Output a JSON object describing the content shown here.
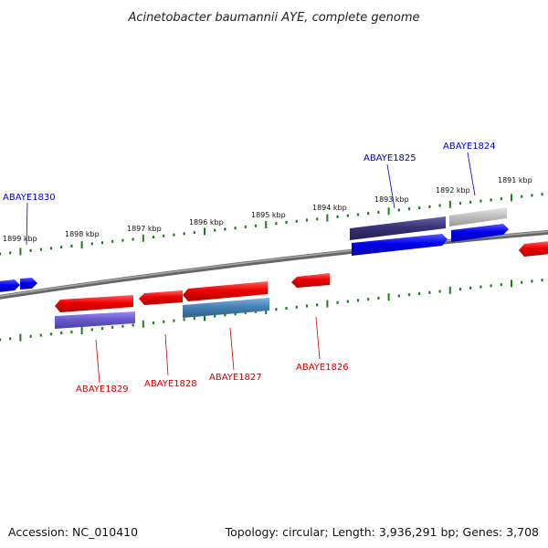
{
  "title": "Acinetobacter baumannii AYE, complete genome",
  "footer": {
    "accession": "Accession: NC_010410",
    "summary": "Topology: circular; Length: 3,936,291 bp; Genes: 3,708"
  },
  "colors": {
    "backbone": "#777777",
    "tick": "#1a7f1a",
    "forward_gene": "#0000ee",
    "reverse_gene": "#ee0000",
    "label_forward": "#0000cc",
    "label_reverse": "#cc0000",
    "dark_purple": "#3a3277",
    "light_purple": "#6a5acd",
    "steel_blue": "#4682b4",
    "gray_gene": "#c0c0c0"
  },
  "scale_labels": [
    "1899 kbp",
    "1898 kbp",
    "1897 kbp",
    "1896 kbp",
    "1895 kbp",
    "1894 kbp",
    "1893 kbp",
    "1892 kbp",
    "1891 kbp"
  ],
  "gene_labels": [
    {
      "name": "ABAYE1830",
      "strand": "forward"
    },
    {
      "name": "ABAYE1825",
      "strand": "forward"
    },
    {
      "name": "ABAYE1824",
      "strand": "forward"
    },
    {
      "name": "ABAYE1829",
      "strand": "reverse"
    },
    {
      "name": "ABAYE1828",
      "strand": "reverse"
    },
    {
      "name": "ABAYE1827",
      "strand": "reverse"
    },
    {
      "name": "ABAYE1826",
      "strand": "reverse"
    }
  ]
}
